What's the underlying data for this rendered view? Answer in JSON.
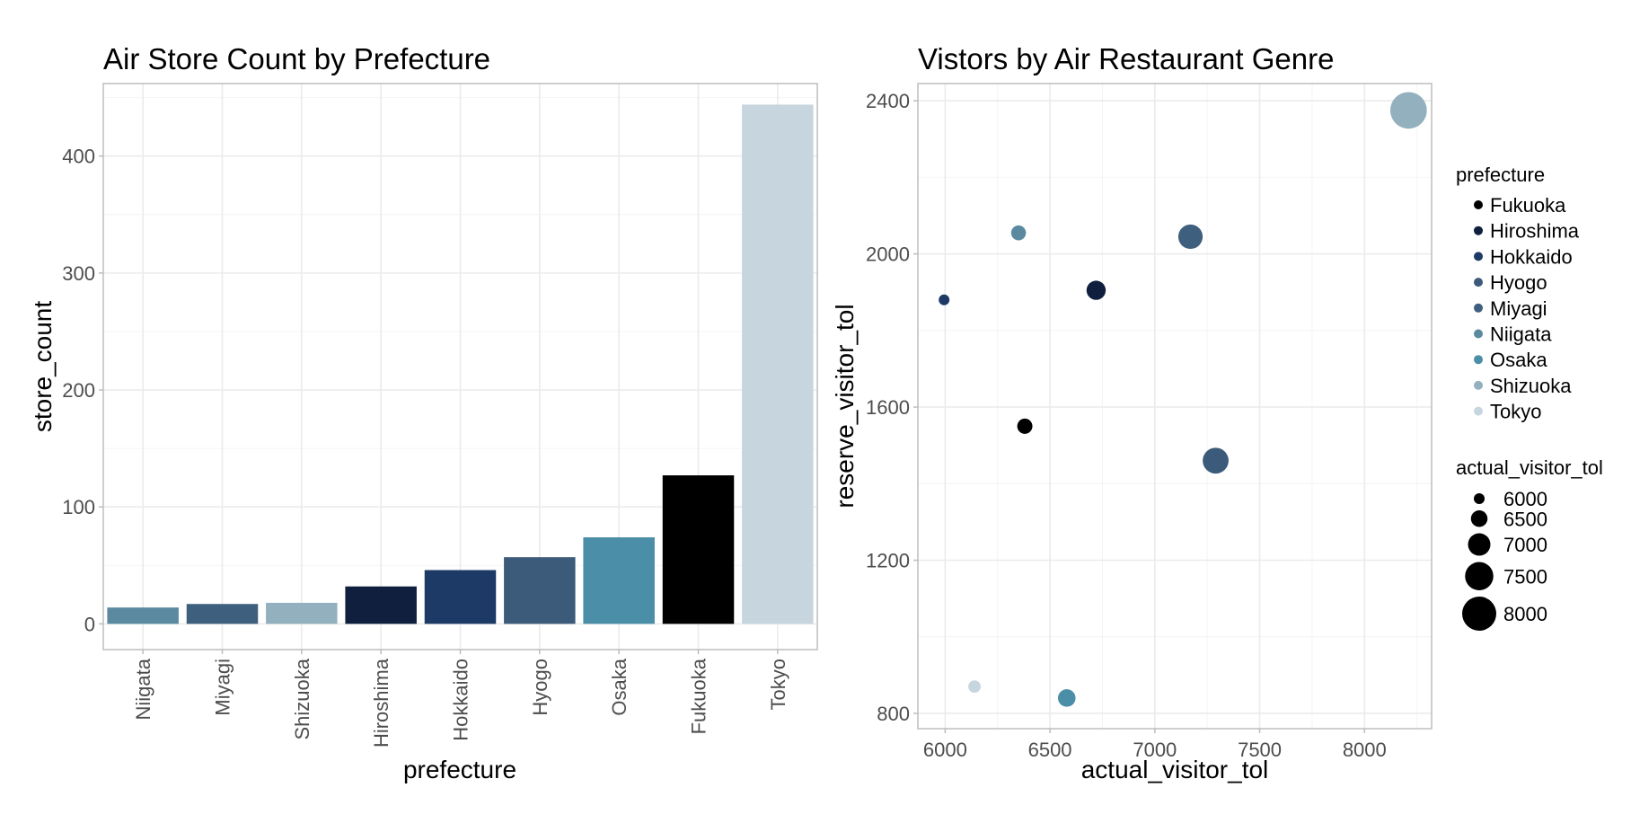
{
  "chart_data": [
    {
      "type": "bar",
      "title": "Air Store Count by Prefecture",
      "xlabel": "prefecture",
      "ylabel": "store_count",
      "ylim": [
        -22,
        462
      ],
      "yticks": [
        0,
        100,
        200,
        300,
        400
      ],
      "grid": true,
      "categories": [
        "Niigata",
        "Miyagi",
        "Shizuoka",
        "Hiroshima",
        "Hokkaido",
        "Hyogo",
        "Osaka",
        "Fukuoka",
        "Tokyo"
      ],
      "values": [
        14,
        17,
        18,
        32,
        46,
        57,
        74,
        127,
        444
      ],
      "colors": [
        "#5b8aa0",
        "#3e5f7e",
        "#93b0be",
        "#0f1f3d",
        "#1d3a66",
        "#3c5a7a",
        "#4b8ea7",
        "#000000",
        "#c7d5de"
      ]
    },
    {
      "type": "scatter",
      "title": "Vistors by Air Restaurant Genre",
      "xlabel": "actual_visitor_tol",
      "ylabel": "reserve_visitor_tol",
      "xlim": [
        5870,
        8320
      ],
      "ylim": [
        760,
        2445
      ],
      "xticks": [
        6000,
        6500,
        7000,
        7500,
        8000
      ],
      "yticks": [
        800,
        1200,
        1600,
        2000,
        2400
      ],
      "grid": true,
      "legend_position": "right",
      "color_legend": {
        "title": "prefecture",
        "entries": [
          {
            "label": "Fukuoka",
            "color": "#000000"
          },
          {
            "label": "Hiroshima",
            "color": "#0f1f3d"
          },
          {
            "label": "Hokkaido",
            "color": "#1d3a66"
          },
          {
            "label": "Hyogo",
            "color": "#3c5a7a"
          },
          {
            "label": "Miyagi",
            "color": "#3e5f7e"
          },
          {
            "label": "Niigata",
            "color": "#5b8aa0"
          },
          {
            "label": "Osaka",
            "color": "#4b8ea7"
          },
          {
            "label": "Shizuoka",
            "color": "#93b0be"
          },
          {
            "label": "Tokyo",
            "color": "#c7d5de"
          }
        ]
      },
      "size_legend": {
        "title": "actual_visitor_tol",
        "entries": [
          6000,
          6500,
          7000,
          7500,
          8000
        ]
      },
      "points": [
        {
          "prefecture": "Fukuoka",
          "x": 6380,
          "y": 1550
        },
        {
          "prefecture": "Hiroshima",
          "x": 6720,
          "y": 1905
        },
        {
          "prefecture": "Hokkaido",
          "x": 5995,
          "y": 1880
        },
        {
          "prefecture": "Hyogo",
          "x": 7290,
          "y": 1460
        },
        {
          "prefecture": "Miyagi",
          "x": 7170,
          "y": 2045
        },
        {
          "prefecture": "Niigata",
          "x": 6350,
          "y": 2055
        },
        {
          "prefecture": "Osaka",
          "x": 6580,
          "y": 840
        },
        {
          "prefecture": "Shizuoka",
          "x": 8210,
          "y": 2375
        },
        {
          "prefecture": "Tokyo",
          "x": 6140,
          "y": 870
        }
      ]
    }
  ]
}
